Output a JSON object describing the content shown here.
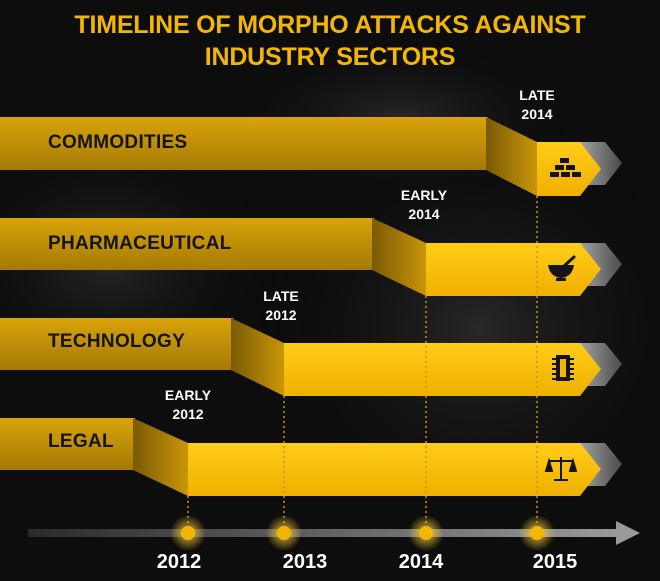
{
  "title": {
    "line1": "TIMELINE OF MORPHO ATTACKS AGAINST",
    "line2": "INDUSTRY SECTORS"
  },
  "colors": {
    "accent": "#f2b705",
    "background": "#0d0d0d",
    "label_text": "#141414",
    "white_text": "#ffffff"
  },
  "sectors": [
    {
      "name": "COMMODITIES",
      "start_label": "LATE\n2014",
      "start_line1": "LATE",
      "start_line2": "2014",
      "icon": "gold-bars-icon"
    },
    {
      "name": "PHARMACEUTICAL",
      "start_label": "EARLY\n2014",
      "start_line1": "EARLY",
      "start_line2": "2014",
      "icon": "mortar-pestle-icon"
    },
    {
      "name": "TECHNOLOGY",
      "start_label": "LATE\n2012",
      "start_line1": "LATE",
      "start_line2": "2012",
      "icon": "microchip-icon"
    },
    {
      "name": "LEGAL",
      "start_label": "EARLY\n2012",
      "start_line1": "EARLY",
      "start_line2": "2012",
      "icon": "scales-of-justice-icon"
    }
  ],
  "axis": {
    "years": [
      "2012",
      "2013",
      "2014",
      "2015"
    ]
  }
}
